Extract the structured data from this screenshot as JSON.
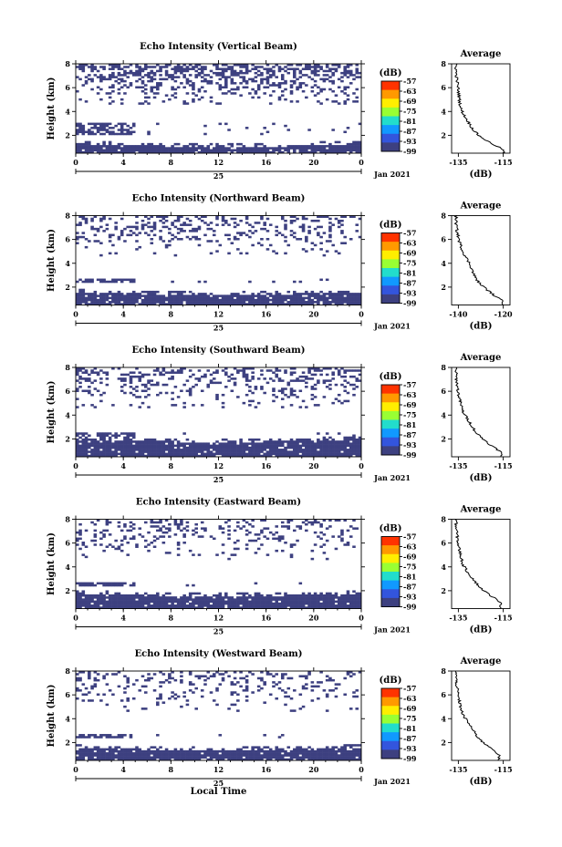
{
  "chart_data": {
    "type": "heatmap",
    "xlabel": "Local Time",
    "date_label": "Jan 2021",
    "day_label": "25",
    "x_ticks": [
      "0",
      "4",
      "8",
      "12",
      "16",
      "20",
      "0"
    ],
    "y_ticks": [
      "2",
      "4",
      "6",
      "8"
    ],
    "ylabel": "Height (km)",
    "xlim": [
      0,
      24
    ],
    "ylim": [
      0.5,
      8
    ],
    "colorbar": {
      "unit": "(dB)",
      "labels": [
        "-57",
        "-63",
        "-69",
        "-75",
        "-81",
        "-87",
        "-93",
        "-99"
      ],
      "colors": [
        "#ff3300",
        "#ff9900",
        "#ffee00",
        "#99ff33",
        "#22ddcc",
        "#1199ff",
        "#3355dd",
        "#3d4080"
      ]
    },
    "profile_title": "Average",
    "profile_xlabel": "(dB)",
    "profile_ylim": [
      0.5,
      8
    ],
    "profile_yticks": [
      "2",
      "4",
      "6",
      "8"
    ],
    "panels": [
      {
        "title": "Echo Intensity (Vertical Beam)",
        "profile_xticks": [
          "-135",
          "-115"
        ],
        "profile_xlim": [
          -138,
          -112
        ],
        "profile_points": [
          [
            -136,
            8
          ],
          [
            -136,
            7.2
          ],
          [
            -135.5,
            6.5
          ],
          [
            -135,
            5.8
          ],
          [
            -134.5,
            5
          ],
          [
            -134,
            4.3
          ],
          [
            -132.5,
            3.7
          ],
          [
            -130.5,
            3.1
          ],
          [
            -128.5,
            2.5
          ],
          [
            -126,
            2.0
          ],
          [
            -122,
            1.5
          ],
          [
            -118,
            1.1
          ],
          [
            -115,
            0.8
          ]
        ],
        "low_band_top": 1.3,
        "mid_band": [
          2.0,
          3.1
        ],
        "top_density": 0.55
      },
      {
        "title": "Echo Intensity (Northward Beam)",
        "profile_xticks": [
          "-140",
          "-120"
        ],
        "profile_xlim": [
          -143,
          -117
        ],
        "profile_points": [
          [
            -141,
            8
          ],
          [
            -141,
            7.3
          ],
          [
            -140.5,
            6.6
          ],
          [
            -139.5,
            5.8
          ],
          [
            -138,
            5
          ],
          [
            -136,
            4.3
          ],
          [
            -134.5,
            3.8
          ],
          [
            -133,
            3.0
          ],
          [
            -131,
            2.4
          ],
          [
            -128,
            1.9
          ],
          [
            -124,
            1.3
          ],
          [
            -120,
            0.8
          ]
        ],
        "low_band_top": 1.6,
        "mid_band": [
          2.3,
          2.8
        ],
        "top_density": 0.3
      },
      {
        "title": "Echo Intensity (Southward Beam)",
        "profile_xticks": [
          "-135",
          "-115"
        ],
        "profile_xlim": [
          -138,
          -112
        ],
        "profile_points": [
          [
            -136,
            8
          ],
          [
            -136,
            7.3
          ],
          [
            -135.5,
            6.5
          ],
          [
            -135,
            5.8
          ],
          [
            -134,
            5
          ],
          [
            -133,
            4.3
          ],
          [
            -131,
            3.7
          ],
          [
            -129,
            3.1
          ],
          [
            -127,
            2.5
          ],
          [
            -124,
            2.0
          ],
          [
            -120,
            1.4
          ],
          [
            -116,
            0.9
          ]
        ],
        "low_band_top": 2.0,
        "mid_band": [
          2.0,
          2.6
        ],
        "top_density": 0.32
      },
      {
        "title": "Echo Intensity (Eastward Beam)",
        "profile_xticks": [
          "-135",
          "-115"
        ],
        "profile_xlim": [
          -138,
          -112
        ],
        "profile_points": [
          [
            -136,
            8
          ],
          [
            -136,
            7.3
          ],
          [
            -135.5,
            6.6
          ],
          [
            -135,
            5.8
          ],
          [
            -134,
            5
          ],
          [
            -133,
            4.2
          ],
          [
            -131,
            3.6
          ],
          [
            -128.5,
            3.0
          ],
          [
            -126,
            2.4
          ],
          [
            -123,
            1.9
          ],
          [
            -119,
            1.4
          ],
          [
            -116,
            0.9
          ]
        ],
        "low_band_top": 1.8,
        "mid_band": [
          2.3,
          2.8
        ],
        "top_density": 0.25
      },
      {
        "title": "Echo Intensity (Westward Beam)",
        "profile_xticks": [
          "-135",
          "-115"
        ],
        "profile_xlim": [
          -138,
          -112
        ],
        "profile_points": [
          [
            -136,
            8
          ],
          [
            -136,
            7.3
          ],
          [
            -135.5,
            6.5
          ],
          [
            -135,
            5.8
          ],
          [
            -134,
            5
          ],
          [
            -133,
            4.3
          ],
          [
            -131,
            3.8
          ],
          [
            -129,
            3.2
          ],
          [
            -127,
            2.6
          ],
          [
            -124,
            2.0
          ],
          [
            -120,
            1.5
          ],
          [
            -117,
            1.0
          ]
        ],
        "low_band_top": 1.6,
        "mid_band": [
          2.3,
          2.8
        ],
        "top_density": 0.22
      }
    ]
  }
}
